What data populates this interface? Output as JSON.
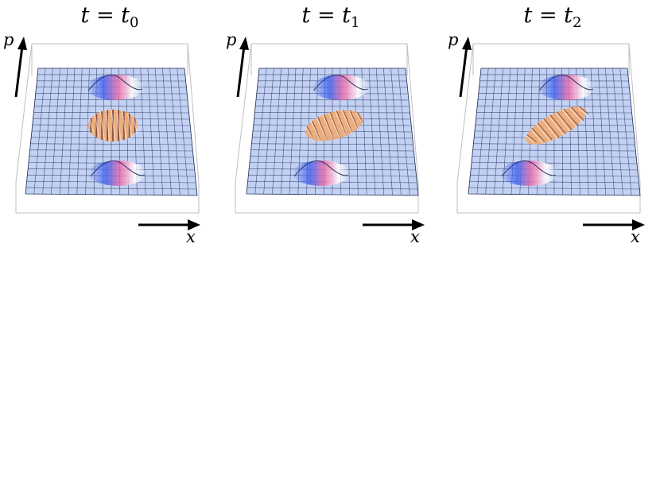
{
  "panels": [
    {
      "title_var": "t = t",
      "title_sub": "0",
      "shear": 0.0
    },
    {
      "title_var": "t = t",
      "title_sub": "1",
      "shear": 0.55
    },
    {
      "title_var": "t = t",
      "title_sub": "2",
      "shear": 1.0
    }
  ],
  "axes": {
    "x_label": "x",
    "p_label": "p"
  },
  "colors": {
    "grid_fill": "#c3d1f3",
    "grid_line": "#1b2a55",
    "box_line": "#bfbfbf",
    "central_packet": "#f2a76a",
    "side_packet_blue": "#4466ee",
    "side_packet_pink": "#ee6aa8"
  }
}
